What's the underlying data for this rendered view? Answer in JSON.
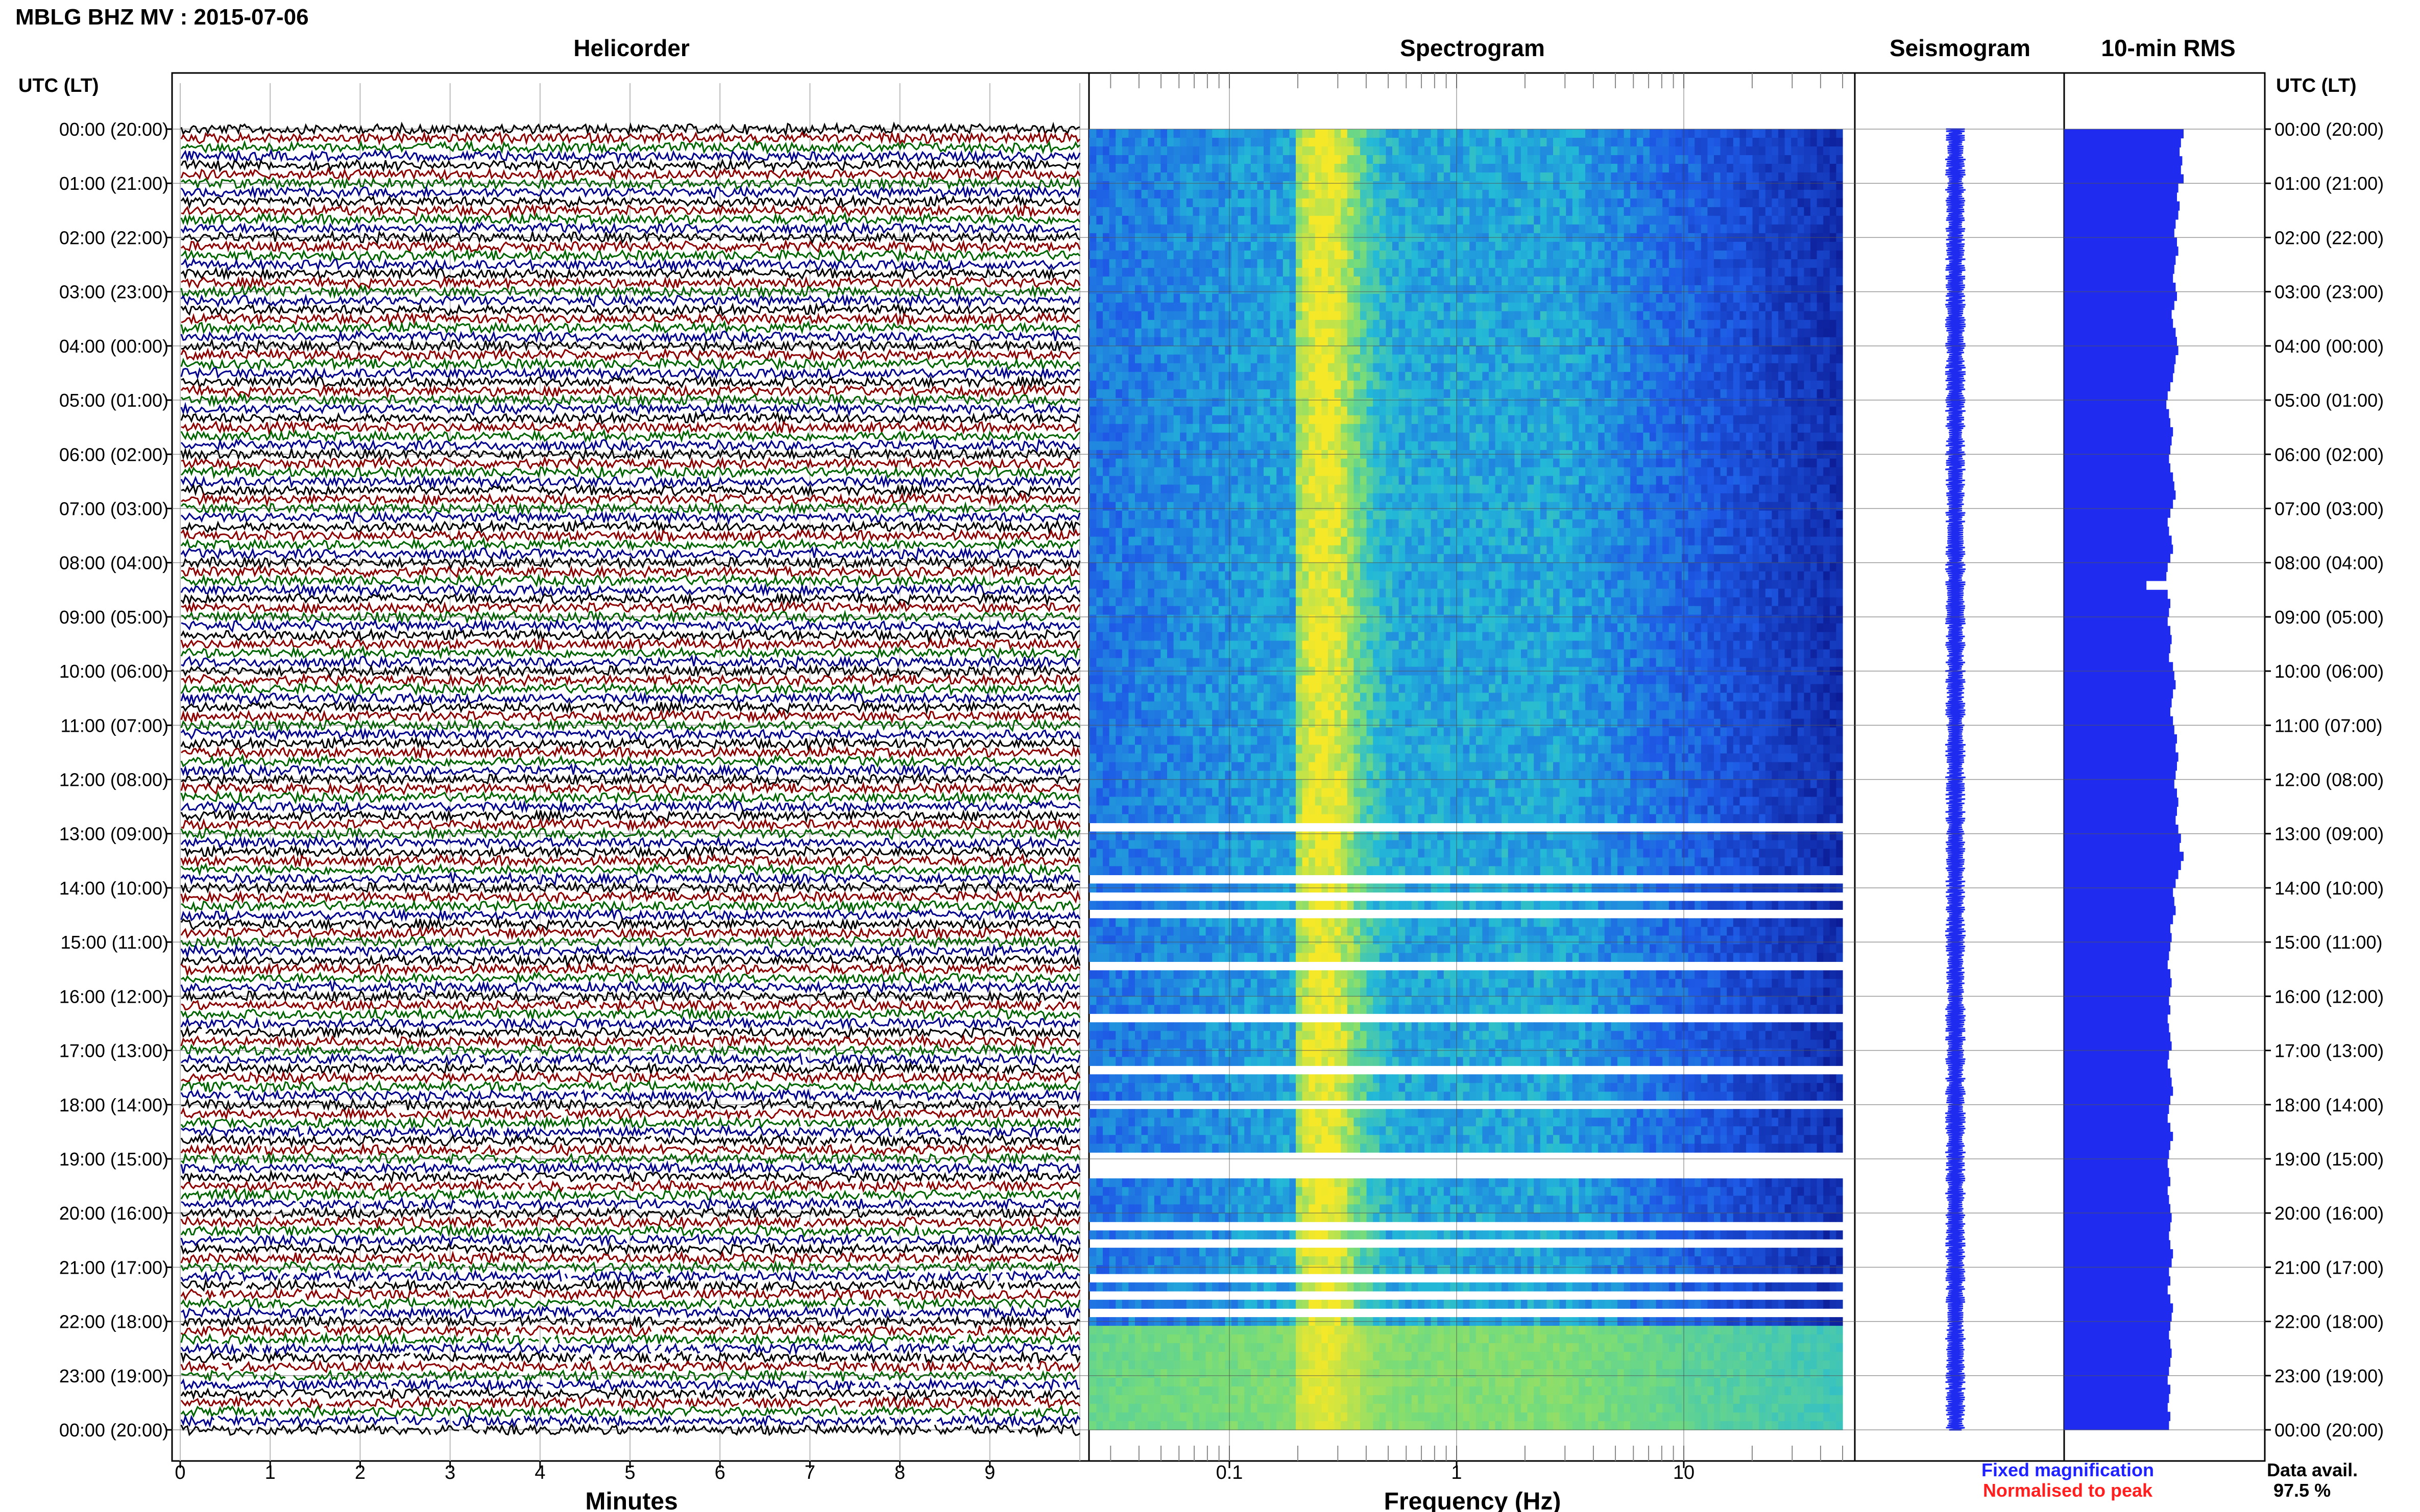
{
  "header": {
    "title": "MBLG BHZ MV : 2015-07-06"
  },
  "panels": {
    "helicorder": "Helicorder",
    "spectrogram": "Spectrogram",
    "seismogram": "Seismogram",
    "rms": "10-min RMS"
  },
  "axis_header_left": "UTC (LT)",
  "axis_header_right": "UTC (LT)",
  "x_axis": {
    "minutes_label": "Minutes",
    "frequency_label": "Frequency (Hz)"
  },
  "legend": {
    "fixed": "Fixed magnification",
    "normalised": "Normalised to peak",
    "fixed_color": "#1f22ff",
    "normalised_color": "#ff1f1f"
  },
  "availability": {
    "label": "Data avail.",
    "value": "97.5 %"
  },
  "colors": {
    "trace_cycle": [
      "#000000",
      "#8b0000",
      "#006400",
      "#00008b"
    ],
    "spec_low": "#0a1a9e",
    "spec_mid": "#21b6d6",
    "spec_high": "#f0e62a",
    "bar": "#1f2cf0"
  },
  "chart_data": [
    {
      "type": "line",
      "title": "Helicorder",
      "xlabel": "Minutes",
      "x_ticks": [
        "0",
        "1",
        "2",
        "3",
        "4",
        "5",
        "6",
        "7",
        "8",
        "9"
      ],
      "xlim": [
        0,
        10
      ],
      "y_ticks": [
        "00:00 (20:00)",
        "01:00 (21:00)",
        "02:00 (22:00)",
        "03:00 (23:00)",
        "04:00 (00:00)",
        "05:00 (01:00)",
        "06:00 (02:00)",
        "07:00 (03:00)",
        "08:00 (04:00)",
        "09:00 (05:00)",
        "10:00 (06:00)",
        "11:00 (07:00)",
        "12:00 (08:00)",
        "13:00 (09:00)",
        "14:00 (10:00)",
        "15:00 (11:00)",
        "16:00 (12:00)",
        "17:00 (13:00)",
        "18:00 (14:00)",
        "19:00 (15:00)",
        "20:00 (16:00)",
        "21:00 (17:00)",
        "22:00 (18:00)",
        "23:00 (19:00)",
        "00:00 (20:00)"
      ],
      "traces_per_hour": 6,
      "trace_color_cycle": [
        "black",
        "darkred",
        "darkgreen",
        "darkblue"
      ]
    },
    {
      "type": "heatmap",
      "title": "Spectrogram",
      "xlabel": "Frequency (Hz)",
      "x_scale": "log",
      "x_ticks": [
        "0.1",
        "1",
        "10"
      ],
      "xlim": [
        0.02,
        50
      ],
      "peak_band_hz": [
        0.2,
        0.5
      ]
    },
    {
      "type": "line",
      "title": "Seismogram",
      "description_none": ""
    },
    {
      "type": "bar",
      "title": "10-min RMS",
      "orientation": "horizontal",
      "values": [
        0.9,
        0.88,
        0.87,
        0.89,
        0.88,
        0.9,
        0.86,
        0.85,
        0.87,
        0.86,
        0.84,
        0.83,
        0.85,
        0.86,
        0.84,
        0.83,
        0.82,
        0.84,
        0.85,
        0.83,
        0.81,
        0.82,
        0.84,
        0.85,
        0.86,
        0.84,
        0.83,
        0.82,
        0.8,
        0.78,
        0.77,
        0.79,
        0.8,
        0.82,
        0.81,
        0.8,
        0.79,
        0.8,
        0.82,
        0.83,
        0.84,
        0.82,
        0.8,
        0.78,
        0.79,
        0.81,
        0.82,
        0.8,
        0.78,
        0.77,
        0.62,
        0.78,
        0.8,
        0.79,
        0.78,
        0.8,
        0.81,
        0.8,
        0.79,
        0.82,
        0.83,
        0.84,
        0.82,
        0.81,
        0.8,
        0.82,
        0.83,
        0.85,
        0.84,
        0.86,
        0.85,
        0.84,
        0.83,
        0.85,
        0.86,
        0.85,
        0.84,
        0.86,
        0.88,
        0.87,
        0.9,
        0.88,
        0.86,
        0.84,
        0.82,
        0.83,
        0.84,
        0.82,
        0.8,
        0.81,
        0.8,
        0.79,
        0.78,
        0.8,
        0.81,
        0.8,
        0.79,
        0.8,
        0.78,
        0.79,
        0.8,
        0.81,
        0.79,
        0.78,
        0.8,
        0.81,
        0.82,
        0.8,
        0.79,
        0.78,
        0.8,
        0.82,
        0.8,
        0.79,
        0.78,
        0.79,
        0.8,
        0.78,
        0.79,
        0.8,
        0.81,
        0.8,
        0.79,
        0.8,
        0.82,
        0.81,
        0.79,
        0.8,
        0.78,
        0.8,
        0.82,
        0.81,
        0.8,
        0.79,
        0.8,
        0.81,
        0.8,
        0.79,
        0.78,
        0.8,
        0.79,
        0.78,
        0.8,
        0.79
      ]
    }
  ]
}
